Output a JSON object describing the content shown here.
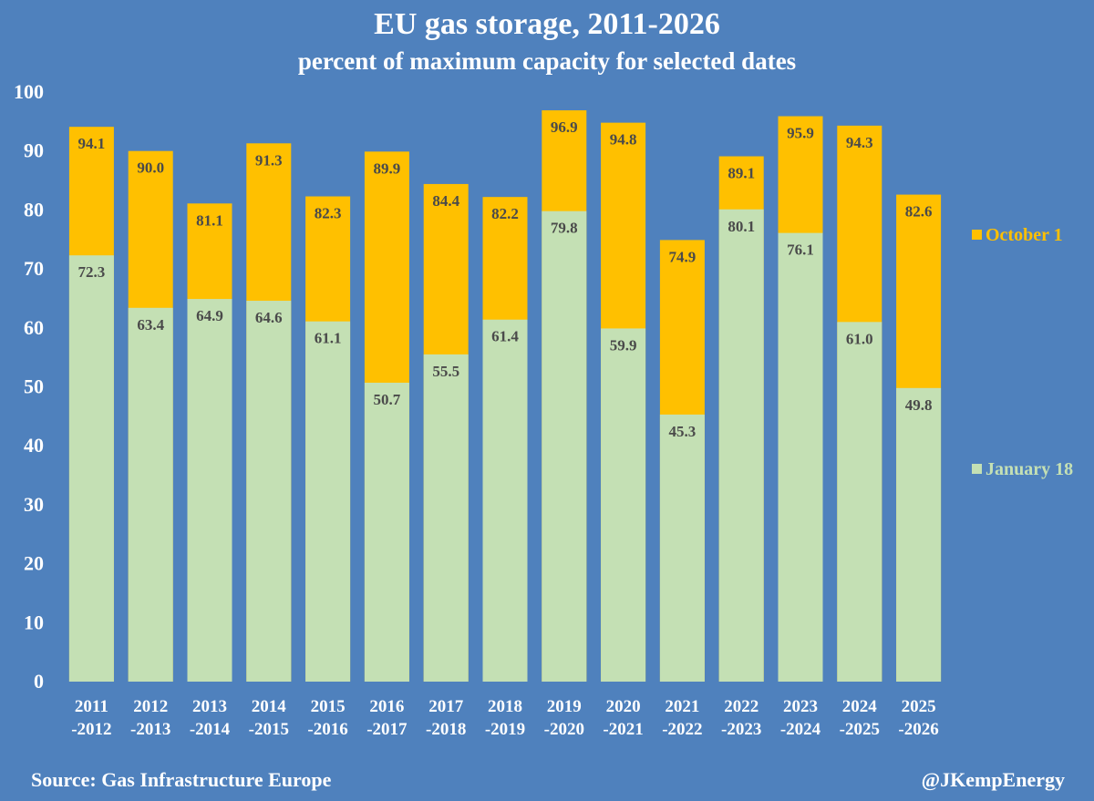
{
  "colors": {
    "background": "#4f81bd",
    "january": "#c4e0b4",
    "october": "#ffc000",
    "label_text": "#4a4a4a",
    "axis_text": "#ffffff"
  },
  "footer": {
    "source": "Source: Gas Infrastructure Europe",
    "handle": "@JKempEnergy"
  },
  "chart_data": {
    "type": "bar",
    "stacking": "overlay",
    "title": "EU gas storage, 2011-2026",
    "subtitle": "percent of maximum capacity for selected dates",
    "categories": [
      [
        "2011",
        "-2012"
      ],
      [
        "2012",
        "-2013"
      ],
      [
        "2013",
        "-2014"
      ],
      [
        "2014",
        "-2015"
      ],
      [
        "2015",
        "-2016"
      ],
      [
        "2016",
        "-2017"
      ],
      [
        "2017",
        "-2018"
      ],
      [
        "2018",
        "-2019"
      ],
      [
        "2019",
        "-2020"
      ],
      [
        "2020",
        "-2021"
      ],
      [
        "2021",
        "-2022"
      ],
      [
        "2022",
        "-2023"
      ],
      [
        "2023",
        "-2024"
      ],
      [
        "2024",
        "-2025"
      ],
      [
        "2025",
        "-2026"
      ]
    ],
    "series": [
      {
        "name": "October 1",
        "color": "#ffc000",
        "values": [
          94.1,
          90.0,
          81.1,
          91.3,
          82.3,
          89.9,
          84.4,
          82.2,
          96.9,
          94.8,
          74.9,
          89.1,
          95.9,
          94.3,
          82.6
        ],
        "labels": [
          "94.1",
          "90.0",
          "81.1",
          "91.3",
          "82.3",
          "89.9",
          "84.4",
          "82.2",
          "96.9",
          "94.8",
          "74.9",
          "89.1",
          "95.9",
          "94.3",
          "82.6"
        ]
      },
      {
        "name": "January 18",
        "color": "#c4e0b4",
        "values": [
          72.3,
          63.4,
          64.9,
          64.6,
          61.1,
          50.7,
          55.5,
          61.4,
          79.8,
          59.9,
          45.3,
          80.1,
          76.1,
          61.0,
          49.8
        ],
        "labels": [
          "72.3",
          "63.4",
          "64.9",
          "64.6",
          "61.1",
          "50.7",
          "55.5",
          "61.4",
          "79.8",
          "59.9",
          "45.3",
          "80.1",
          "76.1",
          "61.0",
          "49.8"
        ]
      }
    ],
    "ylim": [
      0,
      100
    ],
    "yticks": [
      "0",
      "10",
      "20",
      "30",
      "40",
      "50",
      "60",
      "70",
      "80",
      "90",
      "100"
    ],
    "grid": false,
    "legend": "right"
  }
}
